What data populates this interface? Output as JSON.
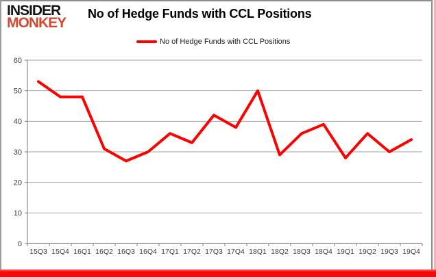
{
  "logo": {
    "line1": "INSIDER",
    "line2": "MONKEY"
  },
  "header": {
    "title": "No of Hedge Funds with CCL Positions"
  },
  "legend": {
    "label": "No of Hedge Funds with CCL Positions"
  },
  "colors": {
    "line": "#fe0000",
    "grid": "#a3a3a3",
    "axis": "#7a7a7a",
    "tick_text": "#3b3b3b",
    "logo_accent": "#d9472e",
    "bottom_bar": "#f60909"
  },
  "chart_data": {
    "type": "line",
    "title": "No of Hedge Funds with CCL Positions",
    "categories": [
      "15Q3",
      "15Q4",
      "16Q1",
      "16Q2",
      "16Q3",
      "16Q4",
      "17Q1",
      "17Q2",
      "17Q3",
      "17Q4",
      "18Q1",
      "18Q2",
      "18Q3",
      "18Q4",
      "19Q1",
      "19Q2",
      "19Q3",
      "19Q4"
    ],
    "series": [
      {
        "name": "No of Hedge Funds with CCL Positions",
        "values": [
          53,
          48,
          48,
          31,
          27,
          30,
          36,
          33,
          42,
          38,
          50,
          29,
          36,
          39,
          28,
          36,
          30,
          34
        ]
      }
    ],
    "xlabel": "",
    "ylabel": "",
    "ylim": [
      0,
      60
    ],
    "ytick_step": 10,
    "grid": true,
    "legend_position": "top"
  }
}
